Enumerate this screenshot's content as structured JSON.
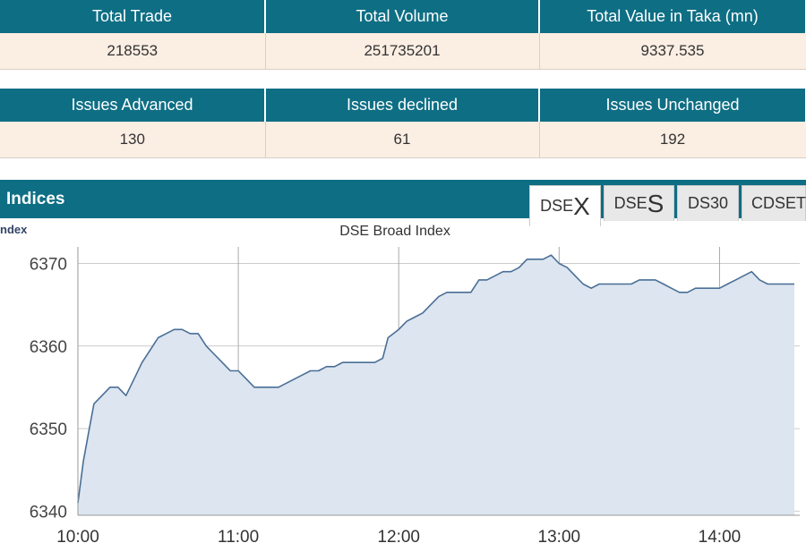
{
  "summary": {
    "headers": [
      "Total Trade",
      "Total Volume",
      "Total Value in Taka (mn)"
    ],
    "values": [
      "218553",
      "251735201",
      "9337.535"
    ]
  },
  "issues": {
    "headers": [
      "Issues Advanced",
      "Issues declined",
      "Issues Unchanged"
    ],
    "values": [
      "130",
      "61",
      "192"
    ]
  },
  "indices": {
    "title": "Indices",
    "tabs": [
      {
        "prefix": "DSE",
        "suffix": "X",
        "active": true
      },
      {
        "prefix": "DSE",
        "suffix": "S",
        "active": false
      },
      {
        "prefix": "DS30",
        "suffix": "",
        "active": false
      },
      {
        "prefix": "CDSET",
        "suffix": "",
        "active": false
      }
    ],
    "left_label_fragment": "ndex"
  },
  "colors": {
    "header": "#0e6e84",
    "line": "#4a6f96",
    "fill": "#dce5f0"
  },
  "chart_data": {
    "type": "area",
    "title": "DSE Broad Index",
    "xlabel": "",
    "ylabel": "",
    "x_ticks": [
      "10:00",
      "11:00",
      "12:00",
      "13:00",
      "14:00"
    ],
    "y_ticks": [
      6340,
      6350,
      6360,
      6370
    ],
    "xlim": [
      "10:00",
      "14:30"
    ],
    "ylim": [
      6339.5,
      6372
    ],
    "grid": true,
    "series": [
      {
        "points": [
          [
            "10:00",
            6341.0
          ],
          [
            "10:02",
            6346.0
          ],
          [
            "10:04",
            6349.5
          ],
          [
            "10:06",
            6353.0
          ],
          [
            "10:09",
            6354.0
          ],
          [
            "10:12",
            6355.0
          ],
          [
            "10:15",
            6355.0
          ],
          [
            "10:18",
            6354.0
          ],
          [
            "10:21",
            6356.0
          ],
          [
            "10:24",
            6358.0
          ],
          [
            "10:27",
            6359.5
          ],
          [
            "10:30",
            6361.0
          ],
          [
            "10:33",
            6361.5
          ],
          [
            "10:36",
            6362.0
          ],
          [
            "10:39",
            6362.0
          ],
          [
            "10:42",
            6361.5
          ],
          [
            "10:45",
            6361.5
          ],
          [
            "10:48",
            6360.0
          ],
          [
            "10:51",
            6359.0
          ],
          [
            "10:54",
            6358.0
          ],
          [
            "10:57",
            6357.0
          ],
          [
            "11:00",
            6357.0
          ],
          [
            "11:03",
            6356.0
          ],
          [
            "11:06",
            6355.0
          ],
          [
            "11:09",
            6355.0
          ],
          [
            "11:12",
            6355.0
          ],
          [
            "11:15",
            6355.0
          ],
          [
            "11:18",
            6355.5
          ],
          [
            "11:21",
            6356.0
          ],
          [
            "11:24",
            6356.5
          ],
          [
            "11:27",
            6357.0
          ],
          [
            "11:30",
            6357.0
          ],
          [
            "11:33",
            6357.5
          ],
          [
            "11:36",
            6357.5
          ],
          [
            "11:39",
            6358.0
          ],
          [
            "11:42",
            6358.0
          ],
          [
            "11:45",
            6358.0
          ],
          [
            "11:48",
            6358.0
          ],
          [
            "11:51",
            6358.0
          ],
          [
            "11:54",
            6358.5
          ],
          [
            "11:56",
            6361.0
          ],
          [
            "11:58",
            6361.5
          ],
          [
            "12:00",
            6362.0
          ],
          [
            "12:03",
            6363.0
          ],
          [
            "12:06",
            6363.5
          ],
          [
            "12:09",
            6364.0
          ],
          [
            "12:12",
            6365.0
          ],
          [
            "12:15",
            6366.0
          ],
          [
            "12:18",
            6366.5
          ],
          [
            "12:21",
            6366.5
          ],
          [
            "12:24",
            6366.5
          ],
          [
            "12:27",
            6366.5
          ],
          [
            "12:30",
            6368.0
          ],
          [
            "12:33",
            6368.0
          ],
          [
            "12:36",
            6368.5
          ],
          [
            "12:39",
            6369.0
          ],
          [
            "12:42",
            6369.0
          ],
          [
            "12:45",
            6369.5
          ],
          [
            "12:48",
            6370.5
          ],
          [
            "12:51",
            6370.5
          ],
          [
            "12:54",
            6370.5
          ],
          [
            "12:57",
            6371.0
          ],
          [
            "13:00",
            6370.0
          ],
          [
            "13:03",
            6369.5
          ],
          [
            "13:06",
            6368.5
          ],
          [
            "13:09",
            6367.5
          ],
          [
            "13:12",
            6367.0
          ],
          [
            "13:15",
            6367.5
          ],
          [
            "13:18",
            6367.5
          ],
          [
            "13:21",
            6367.5
          ],
          [
            "13:24",
            6367.5
          ],
          [
            "13:27",
            6367.5
          ],
          [
            "13:30",
            6368.0
          ],
          [
            "13:33",
            6368.0
          ],
          [
            "13:36",
            6368.0
          ],
          [
            "13:39",
            6367.5
          ],
          [
            "13:42",
            6367.0
          ],
          [
            "13:45",
            6366.5
          ],
          [
            "13:48",
            6366.5
          ],
          [
            "13:51",
            6367.0
          ],
          [
            "13:54",
            6367.0
          ],
          [
            "13:57",
            6367.0
          ],
          [
            "14:00",
            6367.0
          ],
          [
            "14:03",
            6367.5
          ],
          [
            "14:06",
            6368.0
          ],
          [
            "14:09",
            6368.5
          ],
          [
            "14:12",
            6369.0
          ],
          [
            "14:15",
            6368.0
          ],
          [
            "14:18",
            6367.5
          ],
          [
            "14:21",
            6367.5
          ],
          [
            "14:24",
            6367.5
          ],
          [
            "14:28",
            6367.5
          ]
        ]
      }
    ]
  }
}
